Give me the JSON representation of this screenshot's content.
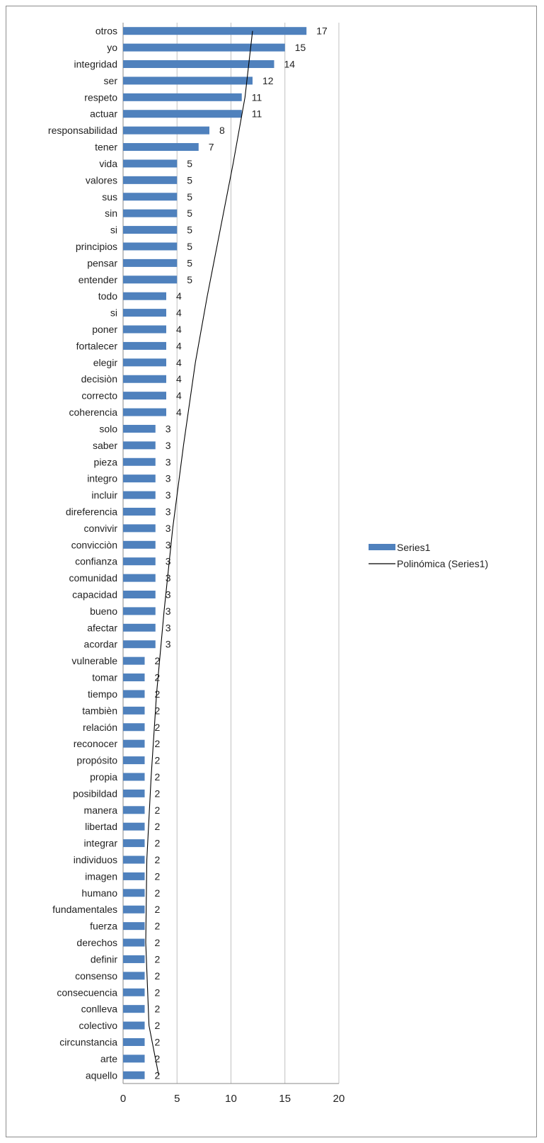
{
  "chart_data": {
    "type": "bar",
    "orientation": "horizontal",
    "categories": [
      "otros",
      "yo",
      "integridad",
      "ser",
      "respeto",
      "actuar",
      "responsabilidad",
      "tener",
      "vida",
      "valores",
      "sus",
      "sin",
      "si",
      "principios",
      "pensar",
      "entender",
      "todo",
      "si",
      "poner",
      "fortalecer",
      "elegir",
      "decisiòn",
      "correcto",
      "coherencia",
      "solo",
      "saber",
      "pieza",
      "integro",
      "incluir",
      "direferencia",
      "convivir",
      "convicciòn",
      "confianza",
      "comunidad",
      "capacidad",
      "bueno",
      "afectar",
      "acordar",
      "vulnerable",
      "tomar",
      "tiempo",
      "tambièn",
      "relación",
      "reconocer",
      "propósito",
      "propia",
      "posibildad",
      "manera",
      "libertad",
      "integrar",
      "individuos",
      "imagen",
      "humano",
      "fundamentales",
      "fuerza",
      "derechos",
      "definir",
      "consenso",
      "consecuencia",
      "conlleva",
      "colectivo",
      "circunstancia",
      "arte",
      "aquello"
    ],
    "series": [
      {
        "name": "Series1",
        "values": [
          17,
          15,
          14,
          12,
          11,
          11,
          8,
          7,
          5,
          5,
          5,
          5,
          5,
          5,
          5,
          5,
          4,
          4,
          4,
          4,
          4,
          4,
          4,
          4,
          3,
          3,
          3,
          3,
          3,
          3,
          3,
          3,
          3,
          3,
          3,
          3,
          3,
          3,
          2,
          2,
          2,
          2,
          2,
          2,
          2,
          2,
          2,
          2,
          2,
          2,
          2,
          2,
          2,
          2,
          2,
          2,
          2,
          2,
          2,
          2,
          2,
          2,
          2,
          2
        ]
      }
    ],
    "trendline": {
      "name": "Polinómica (Series1)",
      "type": "polynomial",
      "points": [
        [
          12,
          0
        ],
        [
          11.3,
          4
        ],
        [
          10.2,
          8
        ],
        [
          9,
          12
        ],
        [
          7.8,
          16
        ],
        [
          6.7,
          20
        ],
        [
          5.6,
          25
        ],
        [
          4.6,
          30
        ],
        [
          3.8,
          35
        ],
        [
          3.1,
          40
        ],
        [
          2.6,
          45
        ],
        [
          2.2,
          50
        ],
        [
          2.1,
          55
        ],
        [
          2.4,
          60
        ],
        [
          3.3,
          63
        ]
      ]
    },
    "xlim": [
      0,
      20
    ],
    "xticks": [
      "0",
      "5",
      "10",
      "15",
      "20"
    ],
    "grid": "vertical",
    "legend": {
      "position": "right",
      "entries": [
        "Series1",
        "Polinómica (Series1)"
      ]
    },
    "colors": {
      "bar": "#4f81bd",
      "trendline": "#000000",
      "grid": "#c0c0c0"
    },
    "title": "",
    "xlabel": "",
    "ylabel": ""
  }
}
